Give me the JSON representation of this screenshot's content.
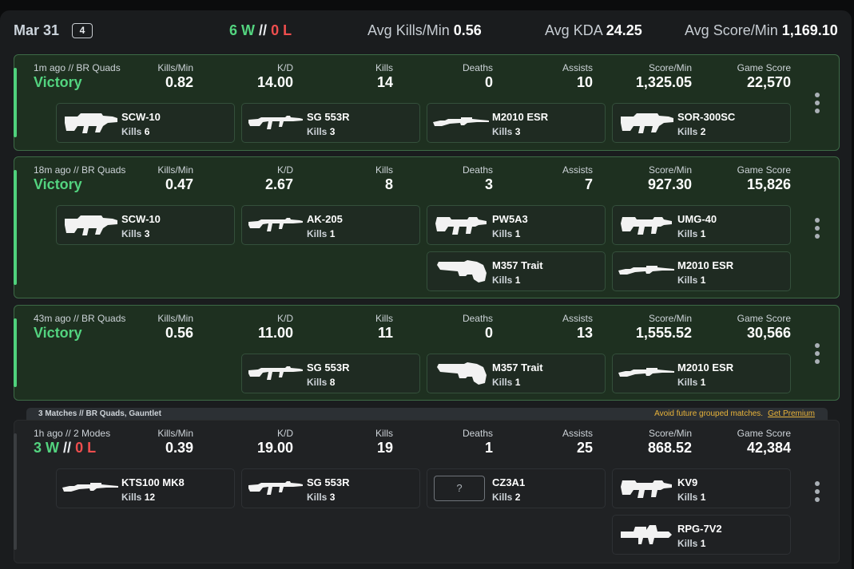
{
  "summary": {
    "date": "Mar 31",
    "match_count": "4",
    "wins": "6 W",
    "separator": "//",
    "losses": "0 L",
    "avg_kills_min_label": "Avg Kills/Min",
    "avg_kills_min": "0.56",
    "avg_kda_label": "Avg KDA",
    "avg_kda": "24.25",
    "avg_score_min_label": "Avg Score/Min",
    "avg_score_min": "1,169.10"
  },
  "stat_labels": {
    "kills_min": "Kills/Min",
    "kd": "K/D",
    "kills": "Kills",
    "deaths": "Deaths",
    "assists": "Assists",
    "score_min": "Score/Min",
    "game_score": "Game Score"
  },
  "kills_prefix": "Kills",
  "matches": [
    {
      "meta": "1m ago // BR Quads",
      "result": "Victory",
      "kills_min": "0.82",
      "kd": "14.00",
      "kills": "14",
      "deaths": "0",
      "assists": "10",
      "score_min": "1,325.05",
      "game_score": "22,570",
      "weapons": [
        {
          "name": "SCW-10",
          "kills": "6",
          "icon": "smg-icon"
        },
        {
          "name": "SG 553R",
          "kills": "3",
          "icon": "rifle-icon"
        },
        {
          "name": "M2010 ESR",
          "kills": "3",
          "icon": "sniper-icon"
        },
        {
          "name": "SOR-300SC",
          "kills": "2",
          "icon": "shotgun-icon"
        }
      ]
    },
    {
      "meta": "18m ago // BR Quads",
      "result": "Victory",
      "kills_min": "0.47",
      "kd": "2.67",
      "kills": "8",
      "deaths": "3",
      "assists": "7",
      "score_min": "927.30",
      "game_score": "15,826",
      "weapons": [
        {
          "name": "SCW-10",
          "kills": "3",
          "icon": "smg-icon"
        },
        {
          "name": "AK-205",
          "kills": "1",
          "icon": "rifle-icon"
        },
        {
          "name": "PW5A3",
          "kills": "1",
          "icon": "smg-icon"
        },
        {
          "name": "UMG-40",
          "kills": "1",
          "icon": "smg-icon"
        },
        {
          "name": "M357 Trait",
          "kills": "1",
          "icon": "revolver-icon"
        },
        {
          "name": "M2010 ESR",
          "kills": "1",
          "icon": "sniper-icon"
        }
      ]
    },
    {
      "meta": "43m ago // BR Quads",
      "result": "Victory",
      "kills_min": "0.56",
      "kd": "11.00",
      "kills": "11",
      "deaths": "0",
      "assists": "13",
      "score_min": "1,555.52",
      "game_score": "30,566",
      "weapons": [
        {
          "name": "SG 553R",
          "kills": "8",
          "icon": "rifle-icon"
        },
        {
          "name": "M357 Trait",
          "kills": "1",
          "icon": "revolver-icon"
        },
        {
          "name": "M2010 ESR",
          "kills": "1",
          "icon": "sniper-icon"
        }
      ]
    },
    {
      "meta": "1h ago // 2 Modes",
      "wins": "3 W",
      "separator": "//",
      "losses": "0 L",
      "kills_min": "0.39",
      "kd": "19.00",
      "kills": "19",
      "deaths": "1",
      "assists": "25",
      "score_min": "868.52",
      "game_score": "42,384",
      "weapons": [
        {
          "name": "KTS100 MK8",
          "kills": "12",
          "icon": "rifle-icon"
        },
        {
          "name": "SG 553R",
          "kills": "3",
          "icon": "rifle-icon"
        },
        {
          "name": "CZ3A1",
          "kills": "2",
          "icon": "unknown-weapon-icon",
          "placeholder": "?"
        },
        {
          "name": "KV9",
          "kills": "1",
          "icon": "smg-icon"
        },
        {
          "name": "RPG-7V2",
          "kills": "1",
          "icon": "launcher-icon"
        }
      ]
    }
  ],
  "group": {
    "label": "3 Matches // BR Quads, Gauntlet",
    "note": "Avoid future grouped matches.",
    "cta": "Get Premium"
  },
  "colors": {
    "win": "#53d37f",
    "loss": "#ef4e4e",
    "card_bg": "#1e3020",
    "premium": "#e8b33a"
  }
}
